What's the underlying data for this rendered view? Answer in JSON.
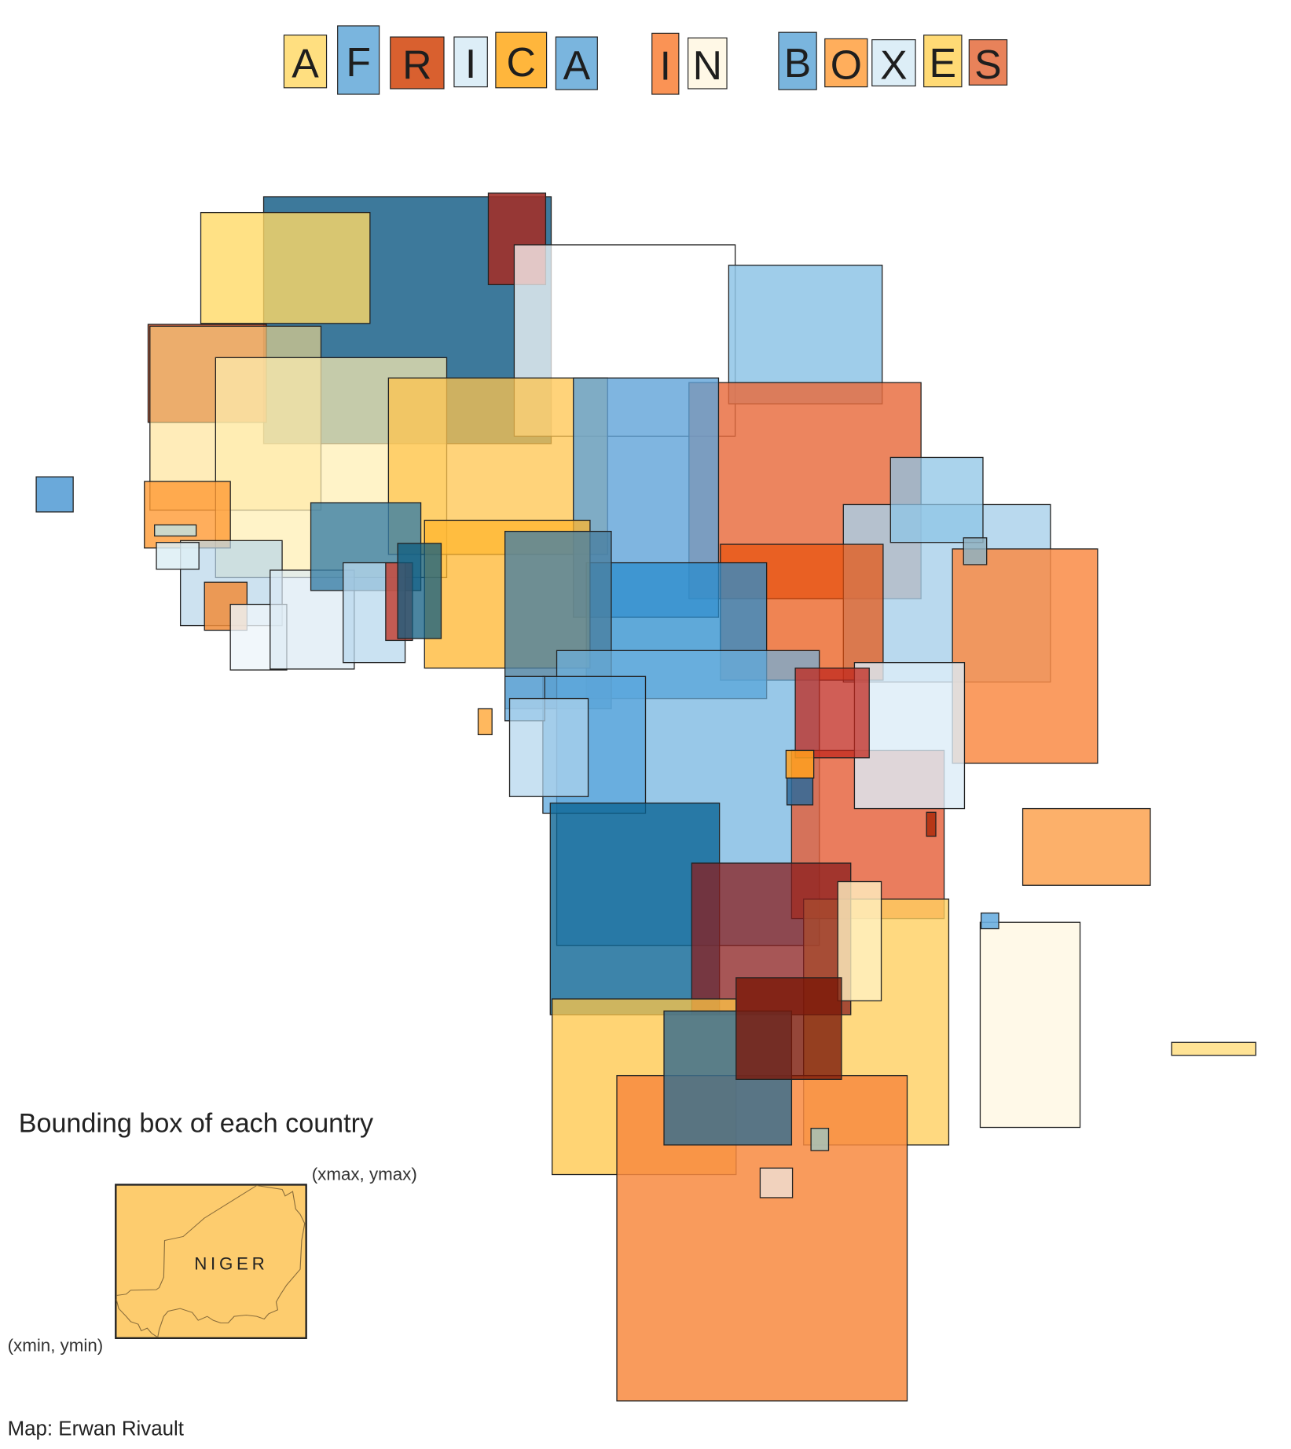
{
  "title": {
    "letters": [
      {
        "char": "A",
        "color": "#ffdf80"
      },
      {
        "char": "F",
        "color": "#7ab5de"
      },
      {
        "char": "R",
        "color": "#d9602f"
      },
      {
        "char": "I",
        "color": "#ddeef7"
      },
      {
        "char": "C",
        "color": "#ffb63c"
      },
      {
        "char": "A",
        "color": "#7ab5de"
      },
      {
        "char": "I",
        "color": "#fa9355"
      },
      {
        "char": "N",
        "color": "#fff8e6"
      },
      {
        "char": "B",
        "color": "#7ab5de"
      },
      {
        "char": "O",
        "color": "#ffae5c"
      },
      {
        "char": "X",
        "color": "#ddeef7"
      },
      {
        "char": "E",
        "color": "#ffda75"
      },
      {
        "char": "S",
        "color": "#e8825a"
      }
    ]
  },
  "legend": {
    "title": "Bounding box of each country",
    "example_country": "NIGER",
    "example_color": "#fdcc6e",
    "max_label": "(xmax, ymax)",
    "min_label": "(xmin, ymin)"
  },
  "credit": "Map: Erwan Rivault"
}
